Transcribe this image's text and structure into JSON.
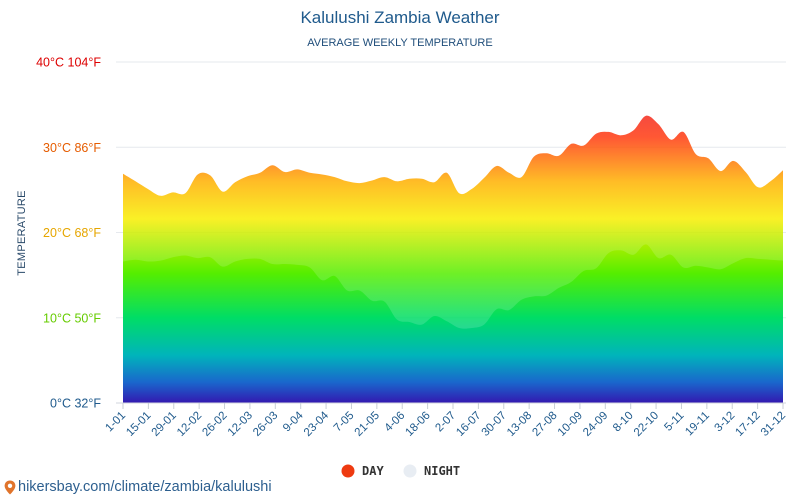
{
  "chart_data": {
    "type": "area",
    "title": "Kalulushi Zambia Weather",
    "subtitle": "AVERAGE WEEKLY TEMPERATURE",
    "ylabel": "TEMPERATURE",
    "ylim": [
      0,
      40
    ],
    "y_ticks": [
      {
        "value": 0,
        "label": "0°C 32°F",
        "color": "#1f5a8c"
      },
      {
        "value": 10,
        "label": "10°C 50°F",
        "color": "#66cc00"
      },
      {
        "value": 20,
        "label": "20°C 68°F",
        "color": "#e6a600"
      },
      {
        "value": 30,
        "label": "30°C 86°F",
        "color": "#e65c00"
      },
      {
        "value": 40,
        "label": "40°C 104°F",
        "color": "#dd0000"
      }
    ],
    "x_tick_labels": [
      "1-01",
      "15-01",
      "29-01",
      "12-02",
      "26-02",
      "12-03",
      "26-03",
      "9-04",
      "23-04",
      "7-05",
      "21-05",
      "4-06",
      "18-06",
      "2-07",
      "16-07",
      "30-07",
      "13-08",
      "27-08",
      "10-09",
      "24-09",
      "8-10",
      "22-10",
      "5-11",
      "19-11",
      "3-12",
      "17-12",
      "31-12"
    ],
    "series": [
      {
        "name": "DAY",
        "color": "#ee3a10",
        "values": [
          26.9,
          26.0,
          25.1,
          24.3,
          24.7,
          24.6,
          26.8,
          26.7,
          24.8,
          25.9,
          26.6,
          27.0,
          27.9,
          27.1,
          27.4,
          27.0,
          26.8,
          26.5,
          26.0,
          25.8,
          26.1,
          26.5,
          26.0,
          26.3,
          26.3,
          25.9,
          27.0,
          24.6,
          25.1,
          26.4,
          27.8,
          27.0,
          26.5,
          28.9,
          29.3,
          29.0,
          30.4,
          30.2,
          31.6,
          31.8,
          31.4,
          32.0,
          33.7,
          32.7,
          30.9,
          31.8,
          29.2,
          28.7,
          27.2,
          28.4,
          27.1,
          25.3,
          26.0,
          27.3
        ]
      },
      {
        "name": "NIGHT",
        "color": "#e8edf3",
        "values": [
          16.6,
          16.8,
          16.6,
          16.7,
          17.1,
          17.3,
          17.0,
          17.1,
          16.0,
          16.6,
          16.9,
          16.9,
          16.3,
          16.3,
          16.2,
          15.9,
          14.4,
          14.9,
          13.2,
          13.2,
          12.0,
          11.9,
          9.8,
          9.5,
          9.2,
          10.2,
          9.6,
          8.8,
          8.8,
          9.2,
          11.0,
          10.9,
          12.1,
          12.5,
          12.6,
          13.5,
          14.2,
          15.5,
          15.8,
          17.6,
          17.9,
          17.4,
          18.6,
          17.0,
          17.4,
          15.9,
          16.1,
          15.9,
          15.7,
          16.4,
          17.0,
          16.9,
          16.8,
          16.7
        ]
      }
    ]
  },
  "legend": {
    "day_label": "DAY",
    "night_label": "NIGHT",
    "day_color": "#ee3a10",
    "night_color": "#e8edf3"
  },
  "source": {
    "text": "hikersbay.com/climate/zambia/kalulushi",
    "icon": "map-pin-icon",
    "icon_color": "#e0742c"
  }
}
